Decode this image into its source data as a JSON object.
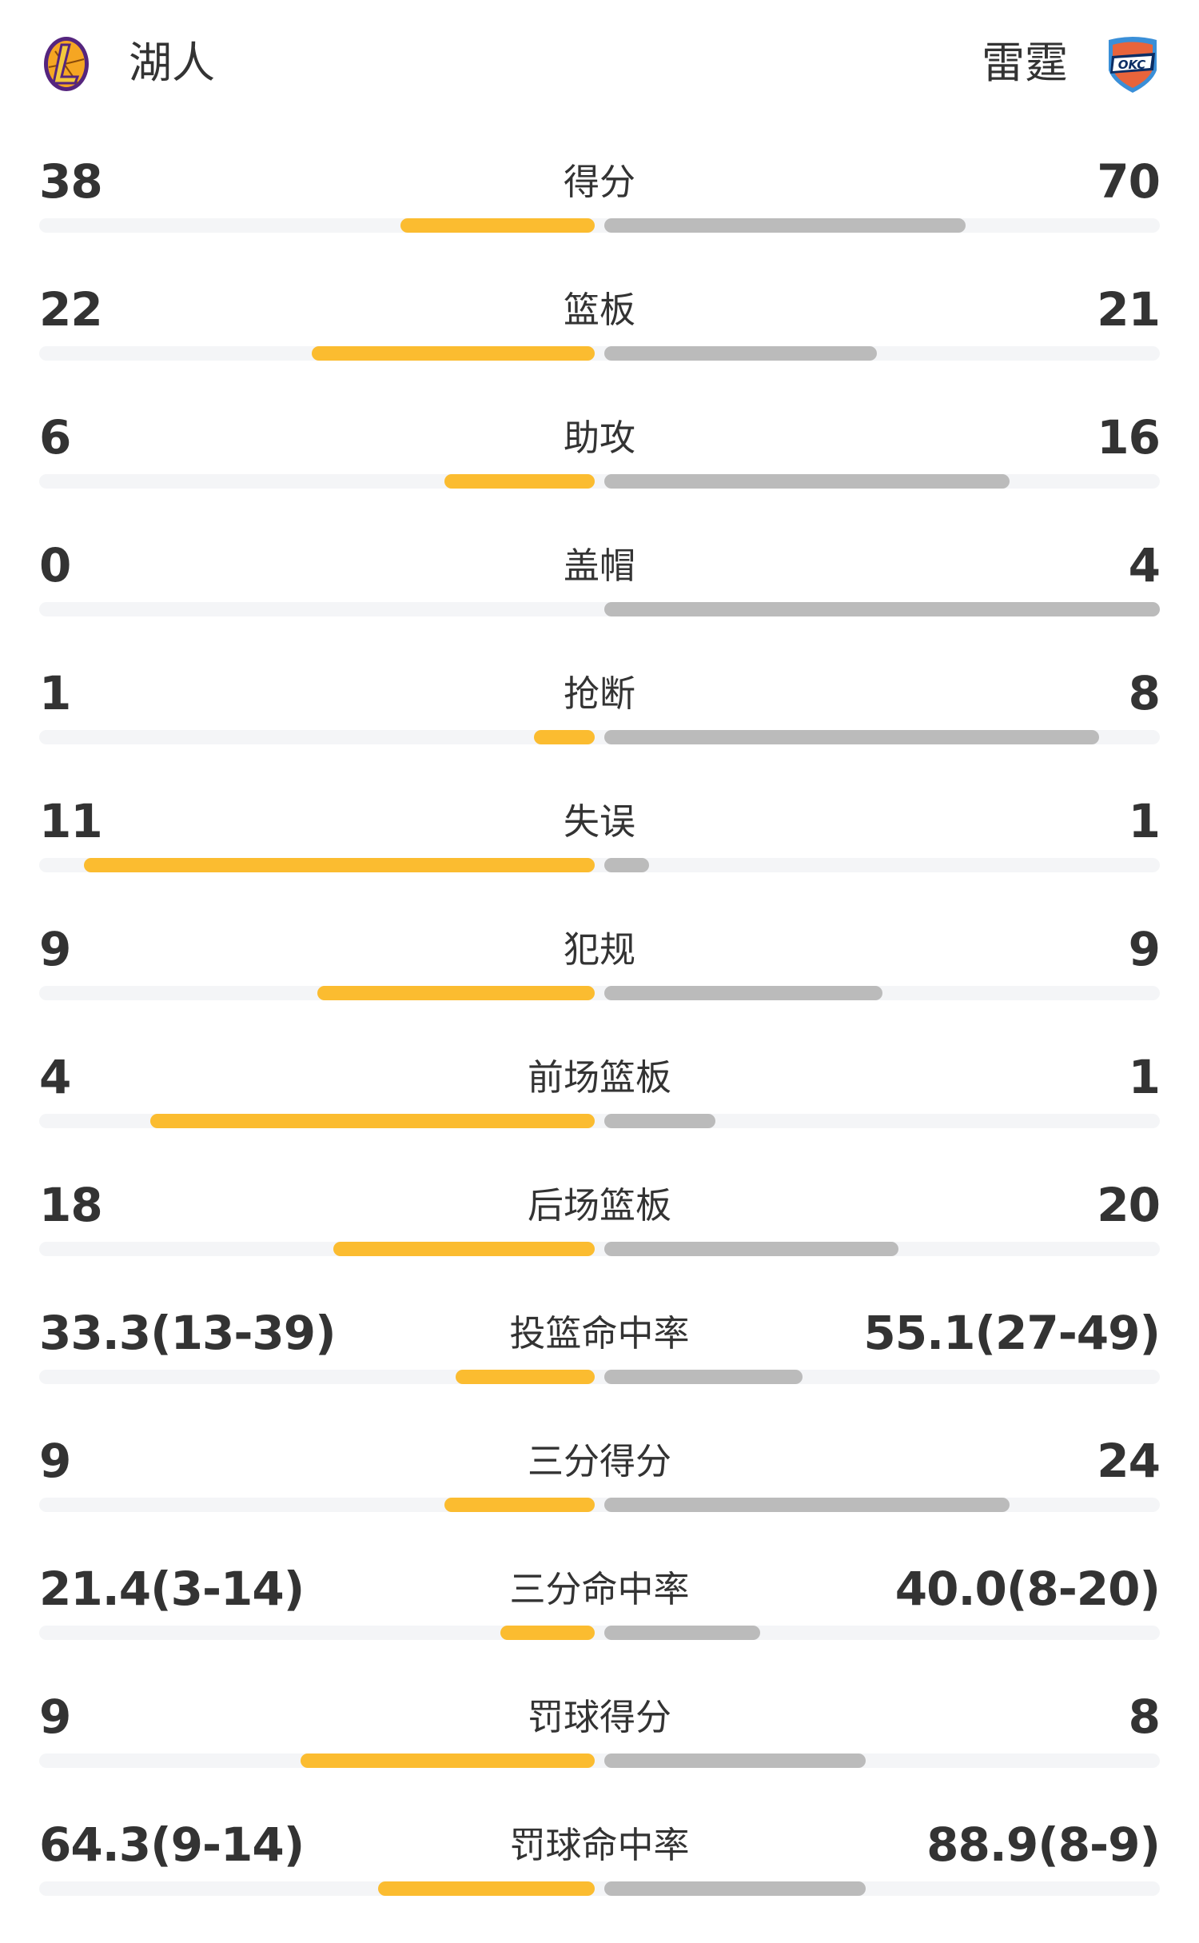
{
  "header": {
    "home_team": "湖人",
    "away_team": "雷霆",
    "home_logo_icon": "lakers-logo-icon",
    "away_logo_icon": "okc-thunder-logo-icon"
  },
  "colors": {
    "home_bar": "#fbbc30",
    "away_bar": "#bbbbbb",
    "track": "#f4f5f7",
    "text": "#333333"
  },
  "stats": [
    {
      "label": "得分",
      "home": "38",
      "away": "70",
      "home_fill": 0.35,
      "away_fill": 0.65
    },
    {
      "label": "篮板",
      "home": "22",
      "away": "21",
      "home_fill": 0.51,
      "away_fill": 0.49
    },
    {
      "label": "助攻",
      "home": "6",
      "away": "16",
      "home_fill": 0.27,
      "away_fill": 0.73
    },
    {
      "label": "盖帽",
      "home": "0",
      "away": "4",
      "home_fill": 0,
      "away_fill": 1.0
    },
    {
      "label": "抢断",
      "home": "1",
      "away": "8",
      "home_fill": 0.11,
      "away_fill": 0.89
    },
    {
      "label": "失误",
      "home": "11",
      "away": "1",
      "home_fill": 0.92,
      "away_fill": 0.08
    },
    {
      "label": "犯规",
      "home": "9",
      "away": "9",
      "home_fill": 0.5,
      "away_fill": 0.5
    },
    {
      "label": "前场篮板",
      "home": "4",
      "away": "1",
      "home_fill": 0.8,
      "away_fill": 0.2
    },
    {
      "label": "后场篮板",
      "home": "18",
      "away": "20",
      "home_fill": 0.47,
      "away_fill": 0.53
    },
    {
      "label": "投篮命中率",
      "home": "33.3(13-39)",
      "away": "55.1(27-49)",
      "home_fill": 0.25,
      "away_fill": 0.357
    },
    {
      "label": "三分得分",
      "home": "9",
      "away": "24",
      "home_fill": 0.27,
      "away_fill": 0.73
    },
    {
      "label": "三分命中率",
      "home": "21.4(3-14)",
      "away": "40.0(8-20)",
      "home_fill": 0.17,
      "away_fill": 0.28
    },
    {
      "label": "罚球得分",
      "home": "9",
      "away": "8",
      "home_fill": 0.53,
      "away_fill": 0.47
    },
    {
      "label": "罚球命中率",
      "home": "64.3(9-14)",
      "away": "88.9(8-9)",
      "home_fill": 0.39,
      "away_fill": 0.47
    }
  ]
}
